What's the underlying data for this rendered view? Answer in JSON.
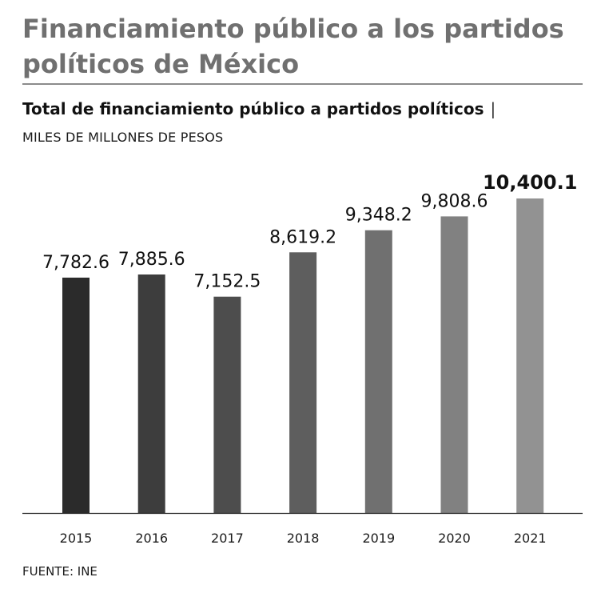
{
  "header": {
    "title": "Financiamiento público a los partidos políticos de México",
    "subtitle": "Total de financiamiento público a partidos políticos",
    "separator": "|",
    "units": "MILES DE MILLONES DE PESOS"
  },
  "footer": {
    "source": "FUENTE: INE"
  },
  "chart_data": {
    "type": "bar",
    "title": "Total de financiamiento público a partidos políticos",
    "ylabel": "MILES DE MILLONES DE PESOS",
    "xlabel": "",
    "categories": [
      "2015",
      "2016",
      "2017",
      "2018",
      "2019",
      "2020",
      "2021"
    ],
    "values": [
      7782.6,
      7885.6,
      7152.5,
      8619.2,
      9348.2,
      9808.6,
      10400.1
    ],
    "labels": [
      "7,782.6",
      "7,885.6",
      "7,152.5",
      "8,619.2",
      "9,348.2",
      "9,808.6",
      "10,400.1"
    ],
    "highlight_label": "10,400.1",
    "colors": [
      "#2b2b2b",
      "#3d3d3d",
      "#4d4d4d",
      "#5e5e5e",
      "#707070",
      "#818181",
      "#929292"
    ],
    "ylim": [
      0,
      10400.1
    ],
    "grid": false,
    "legend": "none"
  }
}
